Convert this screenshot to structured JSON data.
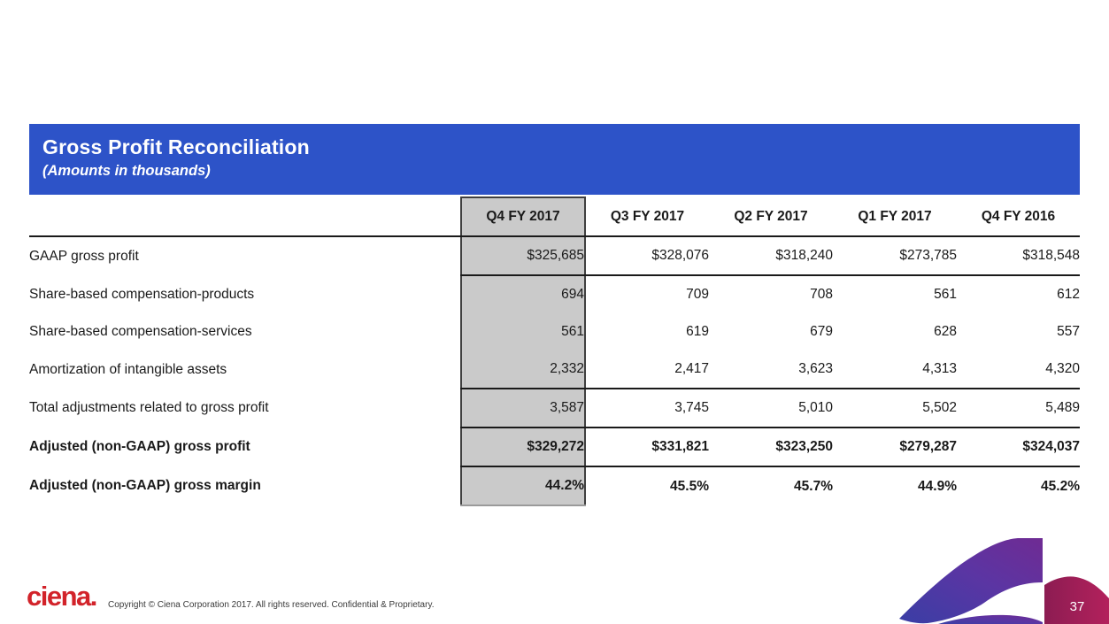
{
  "slide": {
    "title": "Gross Profit Reconciliation",
    "subtitle": "(Amounts in thousands)"
  },
  "table": {
    "columns": [
      "Q4 FY 2017",
      "Q3 FY 2017",
      "Q2 FY 2017",
      "Q1 FY 2017",
      "Q4 FY 2016"
    ],
    "highlighted_column": "Q4 FY 2017",
    "rows": [
      {
        "label": "GAAP gross profit",
        "values": [
          "$325,685",
          "$328,076",
          "$318,240",
          "$273,785",
          "$318,548"
        ],
        "emphasis": false,
        "divider_below": true
      },
      {
        "label": "Share-based compensation-products",
        "values": [
          "694",
          "709",
          "708",
          "561",
          "612"
        ],
        "emphasis": false,
        "divider_below": false
      },
      {
        "label": "Share-based compensation-services",
        "values": [
          "561",
          "619",
          "679",
          "628",
          "557"
        ],
        "emphasis": false,
        "divider_below": false
      },
      {
        "label": "Amortization of intangible assets",
        "values": [
          "2,332",
          "2,417",
          "3,623",
          "4,313",
          "4,320"
        ],
        "emphasis": false,
        "divider_below": true
      },
      {
        "label": "Total adjustments related to gross profit",
        "values": [
          "3,587",
          "3,745",
          "5,010",
          "5,502",
          "5,489"
        ],
        "emphasis": false,
        "divider_below": true
      },
      {
        "label": "Adjusted (non-GAAP) gross profit",
        "values": [
          "$329,272",
          "$331,821",
          "$323,250",
          "$279,287",
          "$324,037"
        ],
        "emphasis": true,
        "divider_below": true
      },
      {
        "label": "Adjusted (non-GAAP) gross margin",
        "values": [
          "44.2%",
          "45.5%",
          "45.7%",
          "44.9%",
          "45.2%"
        ],
        "emphasis": true,
        "divider_below": false
      }
    ]
  },
  "footer": {
    "logo_text": "ciena.",
    "copyright": "Copyright © Ciena Corporation 2017. All rights reserved. Confidential & Proprietary.",
    "page_number": "37"
  },
  "colors": {
    "header_bar": "#2D53C8",
    "highlight_fill": "#CACACA",
    "logo_red": "#D2232A",
    "swoosh_blue": "#3A3EA5",
    "swoosh_purple": "#6F2B93",
    "page_box_left": "#8C1C52",
    "page_box_right": "#B3215C"
  }
}
